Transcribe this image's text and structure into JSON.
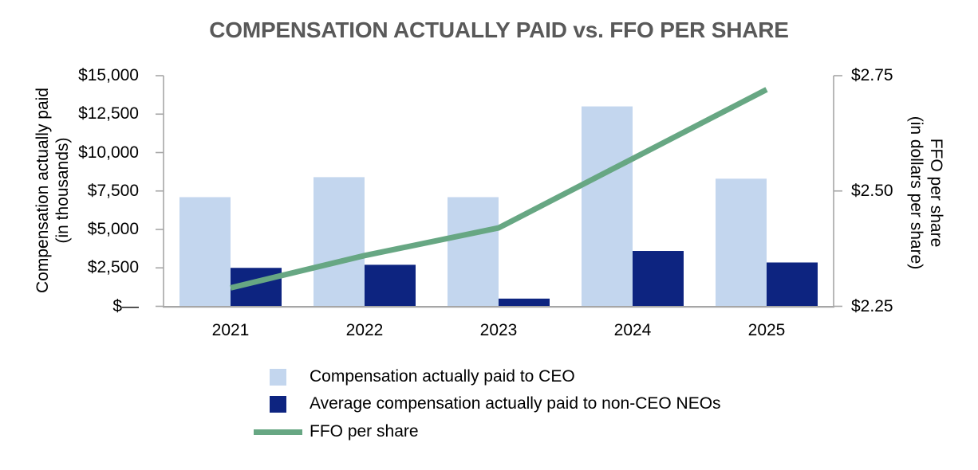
{
  "chart_data": {
    "type": "combo-bar-line",
    "title": "COMPENSATION ACTUALLY PAID vs. FFO PER SHARE",
    "title_color": "#595959",
    "axis_color": "#a6a6a6",
    "grid": false,
    "legend_position": "bottom-left",
    "categories": [
      "2021",
      "2022",
      "2023",
      "2024",
      "2025"
    ],
    "series": [
      {
        "name": "Compensation actually paid to CEO",
        "type": "bar",
        "axis": "left",
        "color": "#c3d6ee",
        "values": [
          7100,
          8400,
          7100,
          13000,
          8300
        ]
      },
      {
        "name": "Average compensation actually paid to non-CEO NEOs",
        "type": "bar",
        "axis": "left",
        "color": "#0d2480",
        "values": [
          2500,
          2700,
          500,
          3600,
          2850
        ]
      },
      {
        "name": "FFO per share",
        "type": "line",
        "axis": "right",
        "color": "#67a783",
        "values": [
          2.29,
          2.36,
          2.42,
          2.57,
          2.72
        ]
      }
    ],
    "left_axis": {
      "label": "Compensation actually paid",
      "label2": "(in thousands)",
      "min": 0,
      "max": 15000,
      "ticks": [
        {
          "label": "$15,000",
          "value": 15000
        },
        {
          "label": "$12,500",
          "value": 12500
        },
        {
          "label": "$10,000",
          "value": 10000
        },
        {
          "label": "$7,500",
          "value": 7500
        },
        {
          "label": "$5,000",
          "value": 5000
        },
        {
          "label": "$2,500",
          "value": 2500
        },
        {
          "label": "$—",
          "value": 0
        }
      ]
    },
    "right_axis": {
      "label": "FFO per share",
      "label2": "(in dollars per share)",
      "min": 2.25,
      "max": 2.75,
      "ticks": [
        {
          "label": "$2.75",
          "value": 2.75
        },
        {
          "label": "$2.50",
          "value": 2.5
        },
        {
          "label": "$2.25",
          "value": 2.25
        }
      ]
    }
  }
}
